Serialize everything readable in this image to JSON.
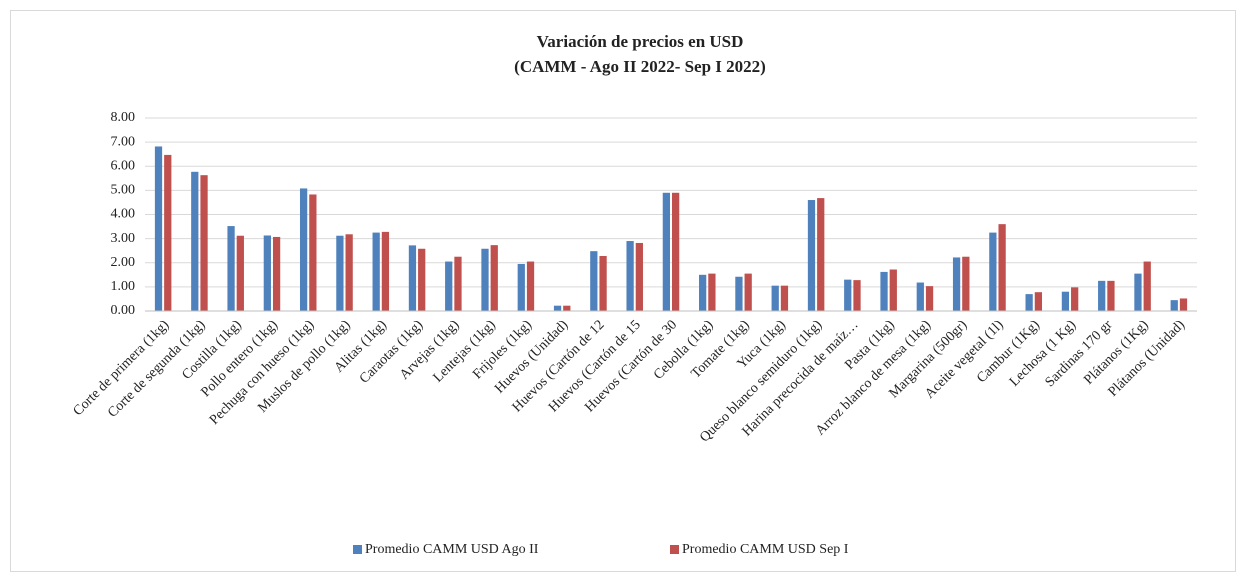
{
  "chart_data": {
    "type": "bar",
    "title": "Variación de precios en USD",
    "subtitle": "(CAMM - Ago II 2022- Sep I 2022)",
    "categories": [
      "Corte de primera (1kg)",
      "Corte de segunda (1kg)",
      "Costilla (1kg)",
      "Pollo entero (1kg)",
      "Pechuga con hueso (1kg)",
      "Muslos de pollo (1kg)",
      "Alitas (1kg)",
      "Caraotas (1kg)",
      "Arvejas (1kg)",
      "Lentejas (1kg)",
      "Frijoles (1kg)",
      "Huevos (Unidad)",
      "Huevos (Cartón de 12",
      "Huevos (Cartón de 15",
      "Huevos (Cartón de 30",
      "Cebolla (1kg)",
      "Tomate (1kg)",
      "Yuca (1kg)",
      "Queso blanco semiduro (1kg)",
      "Harina precocida de maíz…",
      "Pasta (1kg)",
      "Arroz blanco de mesa (1kg)",
      "Margarina (500gr)",
      "Aceite vegetal (1l)",
      "Cambur (1Kg)",
      "Lechosa (1 Kg)",
      "Sardinas 170 gr",
      "Plátanos (1Kg)",
      "Plátanos (Unidad)"
    ],
    "series": [
      {
        "name": "Promedio CAMM USD Ago II",
        "color": "#4f81bd",
        "values": [
          6.82,
          5.77,
          3.52,
          3.13,
          5.08,
          3.12,
          3.25,
          2.72,
          2.05,
          2.58,
          1.95,
          0.22,
          2.48,
          2.9,
          4.9,
          1.5,
          1.42,
          1.05,
          4.6,
          1.3,
          1.62,
          1.18,
          2.22,
          3.25,
          0.7,
          0.8,
          1.25,
          1.55,
          0.45
        ]
      },
      {
        "name": "Promedio CAMM USD Sep I",
        "color": "#c0504d",
        "values": [
          6.47,
          5.63,
          3.12,
          3.07,
          4.83,
          3.18,
          3.28,
          2.58,
          2.25,
          2.73,
          2.05,
          0.22,
          2.28,
          2.82,
          4.9,
          1.55,
          1.55,
          1.05,
          4.68,
          1.28,
          1.72,
          1.03,
          2.25,
          3.6,
          0.78,
          0.98,
          1.25,
          2.05,
          0.52
        ]
      }
    ],
    "ylim": [
      0,
      8
    ],
    "yticks": [
      {
        "value": 0,
        "label": "0.00"
      },
      {
        "value": 1,
        "label": "1.00"
      },
      {
        "value": 2,
        "label": "2.00"
      },
      {
        "value": 3,
        "label": "3.00"
      },
      {
        "value": 4,
        "label": "4.00"
      },
      {
        "value": 5,
        "label": "5.00"
      },
      {
        "value": 6,
        "label": "6.00"
      },
      {
        "value": 7,
        "label": "7.00"
      },
      {
        "value": 8,
        "label": "8.00"
      }
    ],
    "grid": true,
    "legend": "bottom"
  }
}
